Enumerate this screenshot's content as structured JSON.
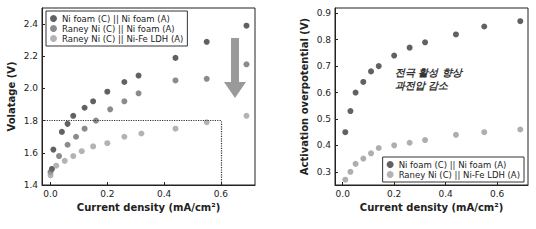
{
  "chart_data": [
    {
      "type": "scatter",
      "x_label": "Current density (mA/cm²)",
      "y_label": "Volatage (V)",
      "xlim": [
        -0.03,
        0.72
      ],
      "xticks": [
        {
          "value": 0,
          "label": "0.0"
        },
        0.2,
        0.4,
        0.6
      ],
      "ylim": [
        1.4,
        2.5
      ],
      "yticks": [
        1.4,
        1.6,
        1.8,
        {
          "value": 2,
          "label": "2.0"
        },
        2.2,
        2.4
      ],
      "grid": false,
      "legend": "upper left",
      "guide": {
        "x": 0.6,
        "y": 1.8
      },
      "series": [
        {
          "name": "Ni foam (C) || Ni foam (A)",
          "color": "#3a3a3a",
          "marker": "circle",
          "x": [
            0.005,
            0.01,
            0.04,
            0.06,
            0.08,
            0.12,
            0.15,
            0.2,
            0.26,
            0.31,
            0.44,
            0.55,
            0.69
          ],
          "values": [
            1.5,
            1.62,
            1.73,
            1.78,
            1.83,
            1.88,
            1.92,
            1.98,
            2.04,
            2.08,
            2.19,
            2.29,
            2.39
          ]
        },
        {
          "name": "Raney Ni (C) || Ni foam (A)",
          "color": "#6e6e6e",
          "marker": "circle",
          "x": [
            0.0,
            0.03,
            0.06,
            0.09,
            0.12,
            0.16,
            0.21,
            0.26,
            0.31,
            0.44,
            0.55,
            0.69
          ],
          "values": [
            1.48,
            1.58,
            1.65,
            1.7,
            1.75,
            1.8,
            1.87,
            1.92,
            1.97,
            2.05,
            2.06,
            2.15
          ]
        },
        {
          "name": "Raney Ni (C) || Ni-Fe LDH (A)",
          "color": "#a0a0a0",
          "marker": "circle",
          "x": [
            0.0,
            0.02,
            0.05,
            0.08,
            0.11,
            0.15,
            0.2,
            0.26,
            0.32,
            0.44,
            0.55,
            0.69
          ],
          "values": [
            1.46,
            1.52,
            1.55,
            1.58,
            1.61,
            1.64,
            1.66,
            1.7,
            1.72,
            1.75,
            1.79,
            1.83
          ]
        }
      ]
    },
    {
      "type": "scatter",
      "x_label": "Current density (mA/cm²)",
      "y_label": "Activation overpotential (V)",
      "xlim": [
        -0.03,
        0.72
      ],
      "xticks": [
        {
          "value": 0,
          "label": "0.0"
        },
        0.2,
        0.4,
        0.6
      ],
      "ylim": [
        0.25,
        0.92
      ],
      "yticks": [
        0.3,
        0.4,
        0.5,
        0.6,
        0.7,
        0.8,
        0.9
      ],
      "grid": false,
      "legend": "lower right",
      "annotation": "전극 활성 향상\n과전압 감소",
      "series": [
        {
          "name": "Ni foam (C) || Ni foam (A)",
          "color": "#3a3a3a",
          "marker": "circle",
          "x": [
            0.01,
            0.03,
            0.05,
            0.08,
            0.11,
            0.14,
            0.2,
            0.26,
            0.32,
            0.44,
            0.55,
            0.69
          ],
          "values": [
            0.45,
            0.53,
            0.6,
            0.64,
            0.68,
            0.7,
            0.74,
            0.77,
            0.79,
            0.82,
            0.85,
            0.87
          ]
        },
        {
          "name": "Raney Ni (C) || Ni-Fe LDH (A)",
          "color": "#9a9a9a",
          "marker": "circle",
          "x": [
            0.01,
            0.03,
            0.05,
            0.08,
            0.11,
            0.14,
            0.2,
            0.26,
            0.32,
            0.44,
            0.55,
            0.69
          ],
          "values": [
            0.27,
            0.3,
            0.33,
            0.35,
            0.37,
            0.39,
            0.4,
            0.41,
            0.42,
            0.44,
            0.45,
            0.46
          ]
        }
      ]
    }
  ]
}
